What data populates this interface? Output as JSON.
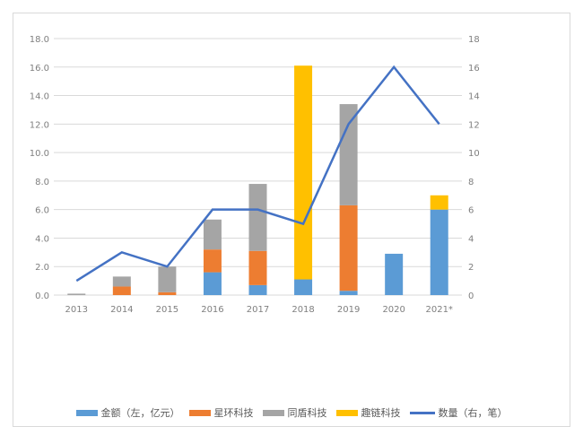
{
  "chart_data": {
    "type": "bar",
    "stacked": true,
    "categories": [
      "2013",
      "2014",
      "2015",
      "2016",
      "2017",
      "2018",
      "2019",
      "2020",
      "2021*"
    ],
    "series": [
      {
        "name": "金额（左，亿元）",
        "color": "#5b9bd5",
        "axis": "left",
        "values": [
          0,
          0,
          0,
          1.6,
          0.7,
          1.1,
          0.3,
          2.9,
          6.0
        ]
      },
      {
        "name": "星环科技",
        "color": "#ed7d31",
        "axis": "left",
        "values": [
          0,
          0.6,
          0.2,
          1.6,
          2.4,
          0,
          6.0,
          0,
          0
        ]
      },
      {
        "name": "同盾科技",
        "color": "#a5a5a5",
        "axis": "left",
        "values": [
          0.1,
          0.7,
          1.8,
          2.1,
          4.7,
          0,
          7.1,
          0,
          0
        ]
      },
      {
        "name": "趣链科技",
        "color": "#ffc000",
        "axis": "left",
        "values": [
          0,
          0,
          0,
          0,
          0,
          15.0,
          0,
          0,
          1.0
        ]
      },
      {
        "name": "数量（右，笔）",
        "type": "line",
        "color": "#4472c4",
        "axis": "right",
        "values": [
          1,
          3,
          2,
          6,
          6,
          5,
          12,
          16,
          12
        ]
      }
    ],
    "y_left": {
      "range": [
        0,
        18
      ],
      "ticks": [
        "0.0",
        "2.0",
        "4.0",
        "6.0",
        "8.0",
        "10.0",
        "12.0",
        "14.0",
        "16.0",
        "18.0"
      ]
    },
    "y_right": {
      "range": [
        0,
        18
      ],
      "ticks": [
        "0",
        "2",
        "4",
        "6",
        "8",
        "10",
        "12",
        "14",
        "16",
        "18"
      ]
    },
    "grid": true,
    "legend_placement": "bottom"
  }
}
